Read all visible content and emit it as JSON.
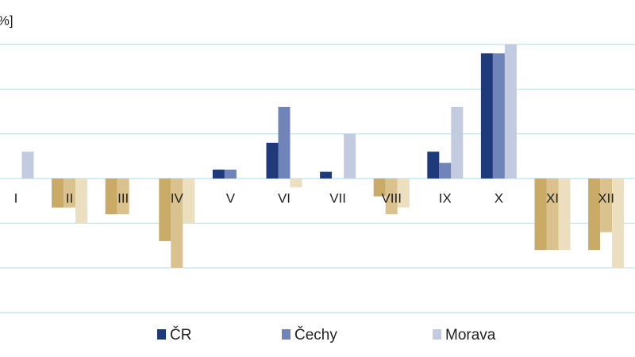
{
  "chart_data": {
    "type": "bar",
    "y_label": "[%]",
    "categories": [
      "I",
      "II",
      "III",
      "IV",
      "V",
      "VI",
      "VII",
      "VIII",
      "IX",
      "X",
      "XI",
      "XII"
    ],
    "series": [
      {
        "name": "ČR",
        "color": "#1f3a7a",
        "negative_color": "#c9aa66",
        "values": [
          0,
          -0.65,
          -0.8,
          -1.4,
          0.2,
          0.8,
          0.15,
          -0.4,
          0.6,
          2.8,
          -1.6,
          -1.6
        ]
      },
      {
        "name": "Čechy",
        "color": "#6f84b8",
        "negative_color": "#d9c28e",
        "values": [
          0,
          -0.65,
          -0.8,
          -2.0,
          0.2,
          1.6,
          0,
          -0.8,
          0.35,
          2.8,
          -1.6,
          -1.2
        ]
      },
      {
        "name": "Morava",
        "color": "#c3cbe0",
        "negative_color": "#ebdfbf",
        "values": [
          0.6,
          -1.0,
          0,
          -1.0,
          0,
          -0.2,
          1.0,
          -0.65,
          1.6,
          3.0,
          -1.6,
          -2.0
        ]
      }
    ],
    "ylim": [
      -3,
      3
    ],
    "yticks": [
      -3,
      -2,
      -1,
      0,
      1,
      2,
      3
    ],
    "grid": true,
    "grid_color": "#bfe0e6",
    "legend": "bottom"
  }
}
